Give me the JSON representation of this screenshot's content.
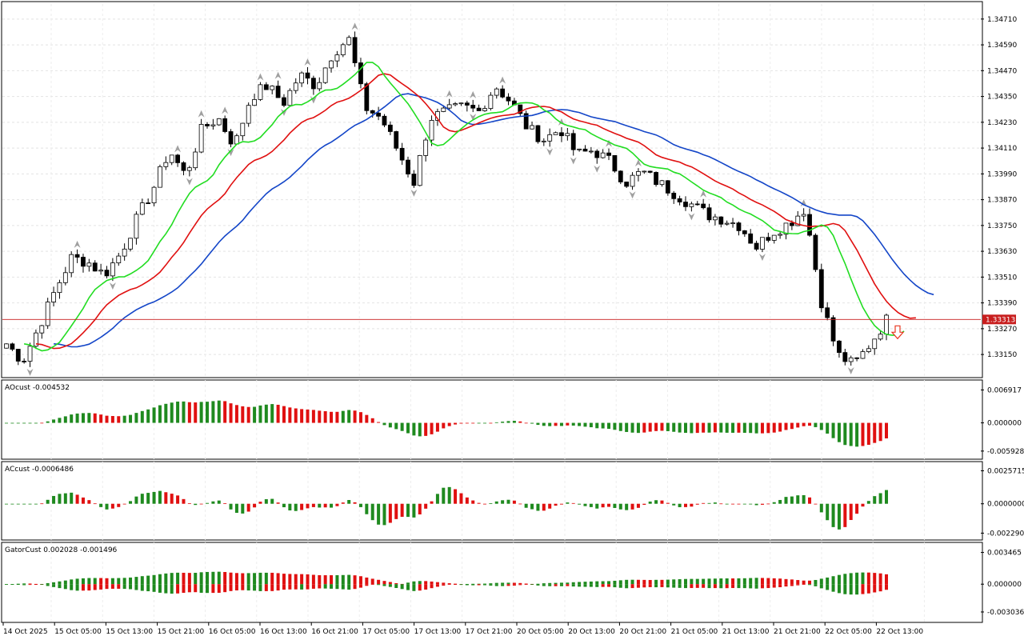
{
  "chart_data": [
    {
      "type": "candlestick",
      "name": "main",
      "price_ticks": [
        "1.34710",
        "1.34590",
        "1.34470",
        "1.34350",
        "1.34230",
        "1.34110",
        "1.33990",
        "1.33870",
        "1.33750",
        "1.33630",
        "1.33510",
        "1.33390",
        "1.33270",
        "1.33150"
      ],
      "ylim": [
        1.3305,
        1.3478
      ],
      "current_price_label": "1.33313",
      "current_price": 1.33313,
      "colors": {
        "bull_fill": "#ffffff",
        "bear_fill": "#000000",
        "jaw": "#1446c8",
        "teeth": "#e01010",
        "lips": "#22dd22",
        "price_line": "#c81e1e",
        "fractal": "#a0a0a0",
        "arrow": "#e83820"
      },
      "x_labels": [
        "14 Oct 2025",
        "15 Oct 05:00",
        "15 Oct 13:00",
        "15 Oct 21:00",
        "16 Oct 05:00",
        "16 Oct 13:00",
        "16 Oct 21:00",
        "17 Oct 05:00",
        "17 Oct 13:00",
        "17 Oct 21:00",
        "20 Oct 05:00",
        "20 Oct 13:00",
        "20 Oct 21:00",
        "21 Oct 05:00",
        "21 Oct 13:00",
        "21 Oct 21:00",
        "22 Oct 05:00",
        "22 Oct 13:00"
      ],
      "close_path": [
        1.332,
        1.3312,
        1.3328,
        1.3345,
        1.336,
        1.3358,
        1.3352,
        1.3362,
        1.3378,
        1.3392,
        1.341,
        1.3398,
        1.342,
        1.3425,
        1.3412,
        1.3435,
        1.344,
        1.3432,
        1.3445,
        1.344,
        1.3455,
        1.3462,
        1.343,
        1.3425,
        1.341,
        1.3395,
        1.3425,
        1.3428,
        1.343,
        1.3428,
        1.344,
        1.3432,
        1.342,
        1.3415,
        1.342,
        1.3408,
        1.341,
        1.3405,
        1.3395,
        1.34,
        1.3395,
        1.339,
        1.3385,
        1.338,
        1.3378,
        1.3375,
        1.3365,
        1.3372,
        1.3376,
        1.3383,
        1.334,
        1.3315,
        1.331,
        1.332,
        1.3331
      ]
    },
    {
      "type": "histogram",
      "name": "AOcust",
      "label": "AOcust -0.004532",
      "ticks": [
        "0.006917",
        "0.000000",
        "-0.005928"
      ],
      "ylim": [
        -0.0073,
        0.0085
      ],
      "values_hint": "oscillator",
      "colors": {
        "up": "#1f8a1f",
        "down": "#e01010"
      }
    },
    {
      "type": "histogram",
      "name": "ACcust",
      "label": "ACcust -0.0006486",
      "ticks": [
        "0.0025715",
        "0.0000000",
        "-0.0022902"
      ],
      "ylim": [
        -0.0027,
        0.0031
      ],
      "colors": {
        "up": "#1f8a1f",
        "down": "#e01010"
      }
    },
    {
      "type": "histogram",
      "name": "GatorCust",
      "label": "GatorCust 0.002028 -0.001496",
      "ticks": [
        "0.003465",
        "0.000000",
        "-0.003036"
      ],
      "ylim": [
        -0.004,
        0.0043
      ],
      "colors": {
        "up": "#1f8a1f",
        "down": "#e01010"
      }
    }
  ]
}
